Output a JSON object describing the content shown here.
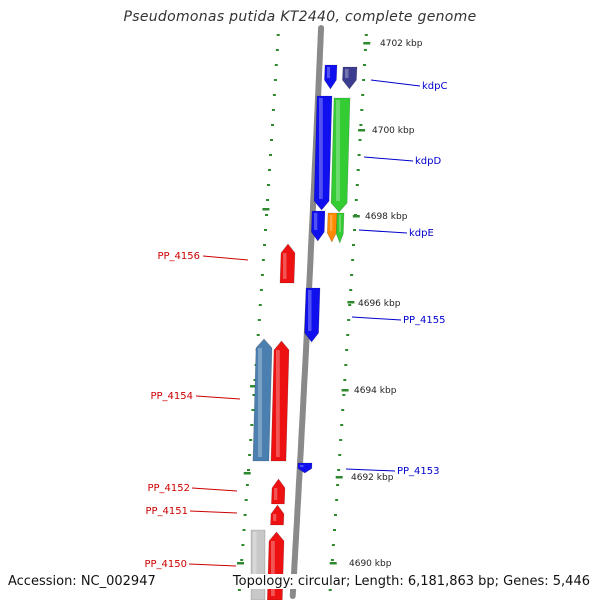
{
  "title": "Pseudomonas putida KT2440, complete genome",
  "footer": {
    "accession": "Accession: NC_002947",
    "summary": "Topology: circular; Length: 6,181,863 bp; Genes: 5,446"
  },
  "colors": {
    "backbone": "#8a8a8a",
    "tick": "#2f8a2f",
    "reverse_label": "#cc0000",
    "forward_label": "#0000cc",
    "blue": "#1010ee",
    "green": "#33cc33",
    "navy": "#3d3d8f",
    "orange": "#ff8a00",
    "red": "#ee1111",
    "steel": "#4a7fb0",
    "grey": "#c8c8c8"
  },
  "scale_labels": [
    {
      "text": "4702 kbp"
    },
    {
      "text": "4700 kbp"
    },
    {
      "text": "4698 kbp"
    },
    {
      "text": "4696 kbp"
    },
    {
      "text": "4694 kbp"
    },
    {
      "text": "4692 kbp"
    },
    {
      "text": "4690 kbp"
    }
  ],
  "gene_labels": [
    {
      "text": "kdpC",
      "strand": "forward"
    },
    {
      "text": "kdpD",
      "strand": "forward"
    },
    {
      "text": "kdpE",
      "strand": "forward"
    },
    {
      "text": "PP_4155",
      "strand": "forward"
    },
    {
      "text": "PP_4153",
      "strand": "forward"
    },
    {
      "text": "PP_4156",
      "strand": "reverse"
    },
    {
      "text": "PP_4154",
      "strand": "reverse"
    },
    {
      "text": "PP_4152",
      "strand": "reverse"
    },
    {
      "text": "PP_4151",
      "strand": "reverse"
    },
    {
      "text": "PP_4150",
      "strand": "reverse"
    }
  ]
}
